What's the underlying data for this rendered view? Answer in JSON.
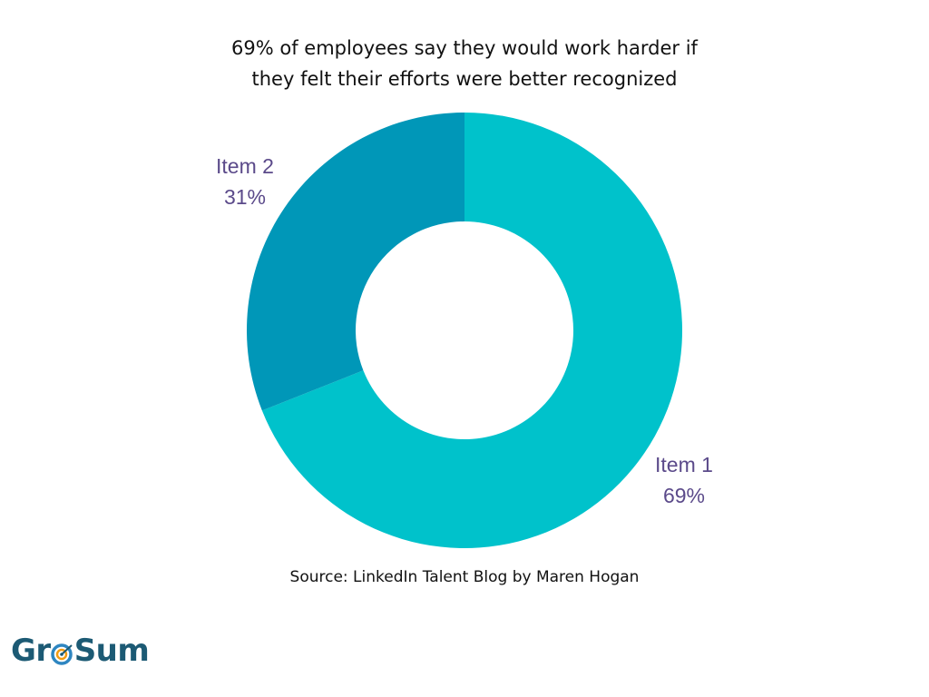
{
  "title_lines": [
    "69% of employees say they would work harder if",
    "they felt their efforts were better recognized"
  ],
  "chart_data": {
    "type": "pie",
    "variant": "donut",
    "title": "69% of employees say they would work harder if they felt their efforts were better recognized",
    "categories": [
      "Item 1",
      "Item 2"
    ],
    "values": [
      69,
      31
    ],
    "value_labels": [
      "69%",
      "31%"
    ],
    "colors": [
      "#00c2cb",
      "#0097b8"
    ],
    "legend": "none"
  },
  "source": "Source: LinkedIn Talent Blog by Maren Hogan",
  "logo": {
    "text_before": "Gr",
    "text_after": "Sum",
    "icon": "target-icon",
    "colors": {
      "text": "#1c5a74",
      "ring": "#2e86c1",
      "accent": "#f39c12"
    }
  }
}
